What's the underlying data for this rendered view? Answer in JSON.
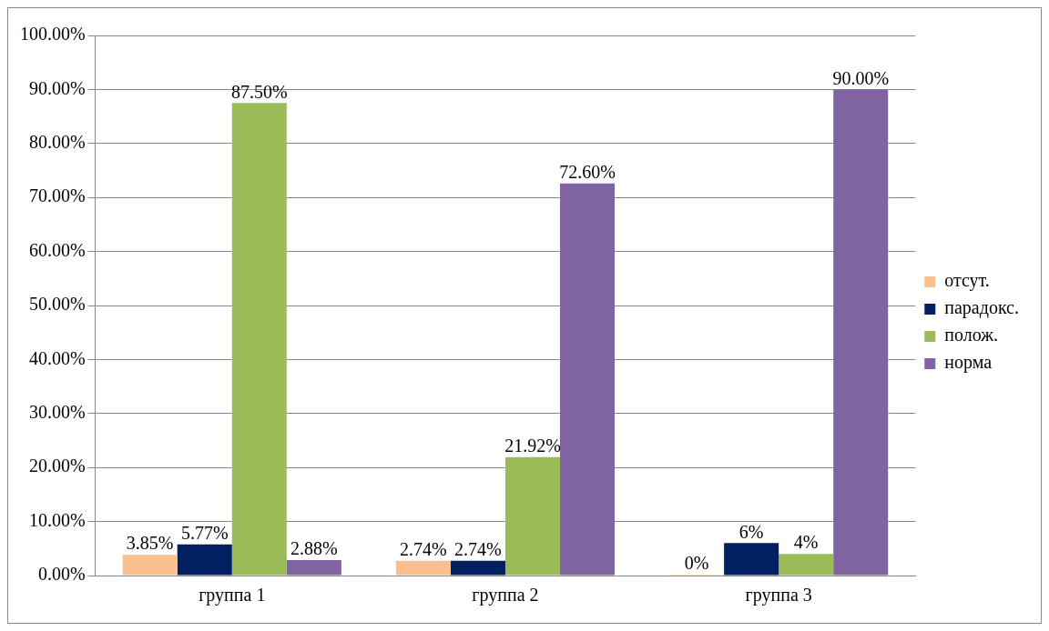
{
  "chart_data": {
    "type": "bar",
    "categories": [
      "группа 1",
      "группа 2",
      "группа 3"
    ],
    "series": [
      {
        "name": "отсут.",
        "color": "#fac090",
        "values": [
          3.85,
          2.74,
          0
        ],
        "value_labels": [
          "3.85%",
          "2.74%",
          "0%"
        ]
      },
      {
        "name": "парадокс.",
        "color": "#002060",
        "values": [
          5.77,
          2.74,
          6
        ],
        "value_labels": [
          "5.77%",
          "2.74%",
          "6%"
        ]
      },
      {
        "name": "полож.",
        "color": "#9bbb59",
        "values": [
          87.5,
          21.92,
          4
        ],
        "value_labels": [
          "87.50%",
          "21.92%",
          "4%"
        ]
      },
      {
        "name": "норма",
        "color": "#8064a2",
        "values": [
          2.88,
          72.6,
          90
        ],
        "value_labels": [
          "2.88%",
          "72.60%",
          "90.00%"
        ]
      }
    ],
    "ylim": [
      0,
      100
    ],
    "yticks": [
      {
        "value": 0,
        "label": "0.00%"
      },
      {
        "value": 10,
        "label": "10.00%"
      },
      {
        "value": 20,
        "label": "20.00%"
      },
      {
        "value": 30,
        "label": "30.00%"
      },
      {
        "value": 40,
        "label": "40.00%"
      },
      {
        "value": 50,
        "label": "50.00%"
      },
      {
        "value": 60,
        "label": "60.00%"
      },
      {
        "value": 70,
        "label": "70.00%"
      },
      {
        "value": 80,
        "label": "80.00%"
      },
      {
        "value": 90,
        "label": "90.00%"
      },
      {
        "value": 100,
        "label": "100.00%"
      }
    ],
    "grid": "y",
    "legend": "right"
  }
}
